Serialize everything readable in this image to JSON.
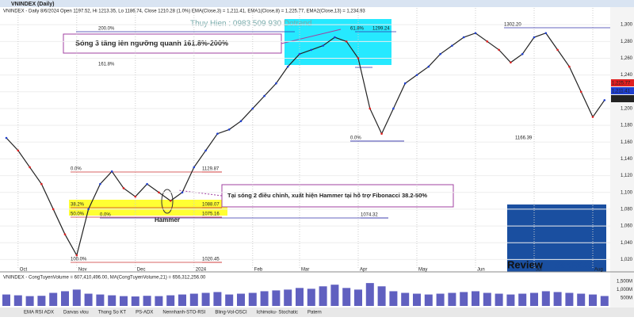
{
  "chart_data": {
    "type": "line",
    "title": "VNINDEX (Daily)",
    "header": "VNINDEX - Daily 8/6/2024 Open 1197.52, Hi 1213.35, Lo 1186.74, Close 1210.28 (1.0%)  EMA(Close,3) = 1,211.41, EMA1(Close,8) = 1,225.77, EMA2(Close,13) = 1,234.93",
    "watermark": "Thuy Hien : 0983 509 930 Dotrend",
    "annotations": [
      "Sóng 3 tăng lên ngưỡng quanh 161.8%-200%",
      "Tại sóng 2 điều chỉnh, xuất hiện Hammer tại hỗ trợ Fibonacci 38.2-50%",
      "Hammer"
    ],
    "fib_labels": [
      "200.0%",
      "161.8%",
      "61.8%",
      "1299.24",
      "1302.20",
      "0.0%",
      "1166.39",
      "0.0%",
      "1129.87",
      "38.2%",
      "1088.07",
      "50.0%",
      "1075.16",
      "0.0%",
      "1074.32",
      "100.0%",
      "1020.45"
    ],
    "price_tags": [
      "1,225.77",
      "1,211.41",
      "1,210.28"
    ],
    "categories": [
      null,
      "Oct",
      null,
      null,
      null,
      null,
      "Nov",
      null,
      null,
      null,
      null,
      "Dec",
      null,
      null,
      null,
      null,
      "2024",
      null,
      null,
      null,
      null,
      "Feb",
      null,
      null,
      null,
      "Mar",
      null,
      null,
      null,
      null,
      "Apr",
      null,
      null,
      null,
      null,
      "May",
      null,
      null,
      null,
      null,
      "Jun",
      null,
      null,
      null,
      null,
      "Jul",
      null,
      null,
      null,
      null,
      "Aug",
      null
    ],
    "series": [
      {
        "name": "Close",
        "color": "#222222",
        "values": [
          1165,
          1150,
          1130,
          1110,
          1080,
          1050,
          1025,
          1080,
          1110,
          1125,
          1105,
          1095,
          1110,
          1100,
          1090,
          1100,
          1130,
          1150,
          1170,
          1175,
          1185,
          1200,
          1215,
          1230,
          1250,
          1265,
          1270,
          1275,
          1285,
          1280,
          1260,
          1200,
          1170,
          1200,
          1230,
          1240,
          1250,
          1265,
          1275,
          1285,
          1290,
          1280,
          1270,
          1255,
          1265,
          1285,
          1290,
          1270,
          1250,
          1220,
          1190,
          1210
        ]
      }
    ],
    "ylim": [
      1010,
      1320
    ],
    "yticks": [
      {
        "value": 1020,
        "label": "1,020"
      },
      {
        "value": 1040,
        "label": "1,040"
      },
      {
        "value": 1060,
        "label": "1,060"
      },
      {
        "value": 1080,
        "label": "1,080"
      },
      {
        "value": 1100,
        "label": "1,100"
      },
      {
        "value": 1120,
        "label": "1,120"
      },
      {
        "value": 1140,
        "label": "1,140"
      },
      {
        "value": 1160,
        "label": "1,160"
      },
      {
        "value": 1180,
        "label": "1,180"
      },
      {
        "value": 1200,
        "label": "1,200"
      },
      {
        "value": 1220,
        "label": "1,220"
      },
      {
        "value": 1240,
        "label": "1,240"
      },
      {
        "value": 1260,
        "label": "1,260"
      },
      {
        "value": 1280,
        "label": "1,280"
      },
      {
        "value": 1300,
        "label": "1,300"
      }
    ],
    "volume": {
      "header": "VNINDEX - CongTuyenVolume = 607,410,496.00, MA(CongTuyenVolume,21) = 656,312,256.00",
      "color": "#6060c0",
      "values": [
        700,
        650,
        600,
        620,
        800,
        900,
        1000,
        750,
        700,
        650,
        600,
        580,
        620,
        600,
        650,
        700,
        750,
        800,
        850,
        700,
        750,
        800,
        900,
        950,
        1000,
        1100,
        1050,
        1200,
        1300,
        1100,
        1000,
        1400,
        1200,
        900,
        800,
        750,
        700,
        750,
        800,
        850,
        900,
        800,
        750,
        700,
        750,
        800,
        900,
        850,
        800,
        750,
        700,
        607
      ],
      "ylim": [
        0,
        1600
      ],
      "yticks": [
        {
          "value": 500,
          "label": "500M"
        },
        {
          "value": 1000,
          "label": "1,000M"
        },
        {
          "value": 1500,
          "label": "1,500M"
        }
      ]
    },
    "tabs": [
      "EMA RSI ADX",
      "Darvas vlou",
      "Thong So KT",
      "PS-ADX",
      "Nennhanh-STO-RSI",
      "Bling-Vol-OSCI",
      "Ichimoku- Stochatic",
      "Patern"
    ],
    "logo": [
      "Review",
      "SanFX.Com"
    ]
  }
}
